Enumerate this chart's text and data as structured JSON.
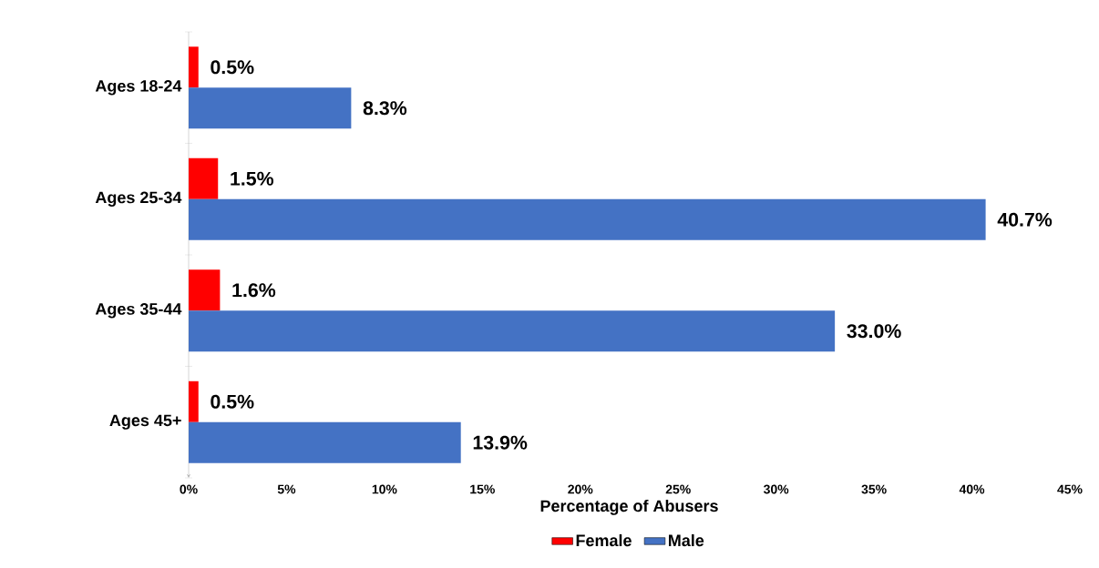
{
  "chart_data": {
    "type": "bar",
    "orientation": "horizontal",
    "xlabel": "Percentage of Abusers",
    "categories": [
      "Ages 18-24",
      "Ages 25-34",
      "Ages 35-44",
      "Ages 45+"
    ],
    "series": [
      {
        "name": "Female",
        "color": "#ff0000",
        "values": [
          0.5,
          1.5,
          1.6,
          0.5
        ],
        "value_labels": [
          "0.5%",
          "1.5%",
          "1.6%",
          "0.5%"
        ]
      },
      {
        "name": "Male",
        "color": "#4472c4",
        "values": [
          8.3,
          40.7,
          33.0,
          13.9
        ],
        "value_labels": [
          "8.3%",
          "40.7%",
          "33.0%",
          "13.9%"
        ]
      }
    ],
    "xlim": [
      0,
      45
    ],
    "xticks": [
      {
        "value": 0,
        "label": "0%"
      },
      {
        "value": 5,
        "label": "5%"
      },
      {
        "value": 10,
        "label": "10%"
      },
      {
        "value": 15,
        "label": "15%"
      },
      {
        "value": 20,
        "label": "20%"
      },
      {
        "value": 25,
        "label": "25%"
      },
      {
        "value": 30,
        "label": "30%"
      },
      {
        "value": 35,
        "label": "35%"
      },
      {
        "value": 40,
        "label": "40%"
      },
      {
        "value": 45,
        "label": "45%"
      }
    ],
    "legend": "bottom",
    "grid": false
  }
}
